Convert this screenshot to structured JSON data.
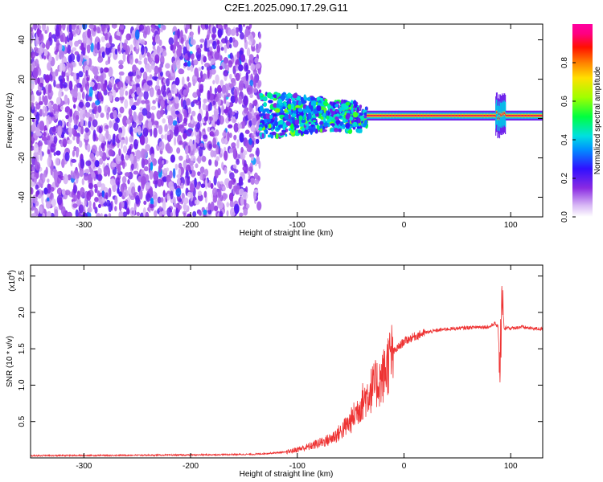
{
  "title": "C2E1.2025.090.17.29.G11",
  "colors": {
    "snr_line": "#ee3333",
    "frame": "#000000"
  },
  "chart_data": [
    {
      "type": "heatmap",
      "xlabel": "Height of straight line (km)",
      "ylabel": "Frequency (Hz)",
      "xlim": [
        -350,
        130
      ],
      "ylim": [
        -50,
        48
      ],
      "xticks": [
        -300,
        -200,
        -100,
        0,
        100
      ],
      "yticks": [
        -40,
        -20,
        0,
        20,
        40
      ],
      "colorbar": {
        "label": "Normalized spectral amplitude",
        "range": [
          0.0,
          1.0
        ],
        "ticks": [
          0.0,
          0.2,
          0.4,
          0.6,
          0.8
        ],
        "colormap": "rainbow (white-purple-blue-cyan-green-yellow-red-magenta)"
      },
      "description_regions": [
        {
          "x_range": [
            -350,
            -135
          ],
          "freq_range": [
            -50,
            48
          ],
          "amplitude": "low (0.05-0.25), diffuse noise"
        },
        {
          "x_range": [
            -135,
            -35
          ],
          "freq_range": [
            -15,
            10
          ],
          "amplitude": "medium (0.3-0.6), scattered"
        },
        {
          "x_range": [
            -35,
            130
          ],
          "freq_center": 1,
          "amplitude": "high (0.8-1.0), narrow band"
        }
      ]
    },
    {
      "type": "line",
      "xlabel": "Height of straight line (km)",
      "ylabel": "SNR (10 * v/v)",
      "multiplier": "(x10",
      "multiplier_exp": "4",
      "multiplier_close": ")",
      "xlim": [
        -350,
        130
      ],
      "ylim": [
        0,
        2.65
      ],
      "xticks": [
        -300,
        -200,
        -100,
        0,
        100
      ],
      "yticks": [
        0.5,
        1.0,
        1.5,
        2.0,
        2.5
      ],
      "series": [
        {
          "x": [
            -350,
            -200,
            -140,
            -110,
            -90,
            -80,
            -70,
            -60,
            -50,
            -40,
            -30,
            -20,
            -15,
            -10,
            0,
            10,
            20,
            30,
            40,
            50,
            60,
            70,
            80,
            85,
            88,
            90,
            92,
            94,
            96,
            100,
            110,
            120,
            130
          ],
          "values": [
            0.03,
            0.04,
            0.05,
            0.08,
            0.15,
            0.2,
            0.25,
            0.35,
            0.5,
            0.75,
            0.95,
            1.1,
            1.3,
            1.45,
            1.6,
            1.67,
            1.72,
            1.75,
            1.77,
            1.78,
            1.79,
            1.8,
            1.8,
            1.85,
            1.8,
            1.3,
            2.2,
            1.75,
            1.8,
            1.78,
            1.8,
            1.78,
            1.77
          ]
        }
      ]
    }
  ]
}
